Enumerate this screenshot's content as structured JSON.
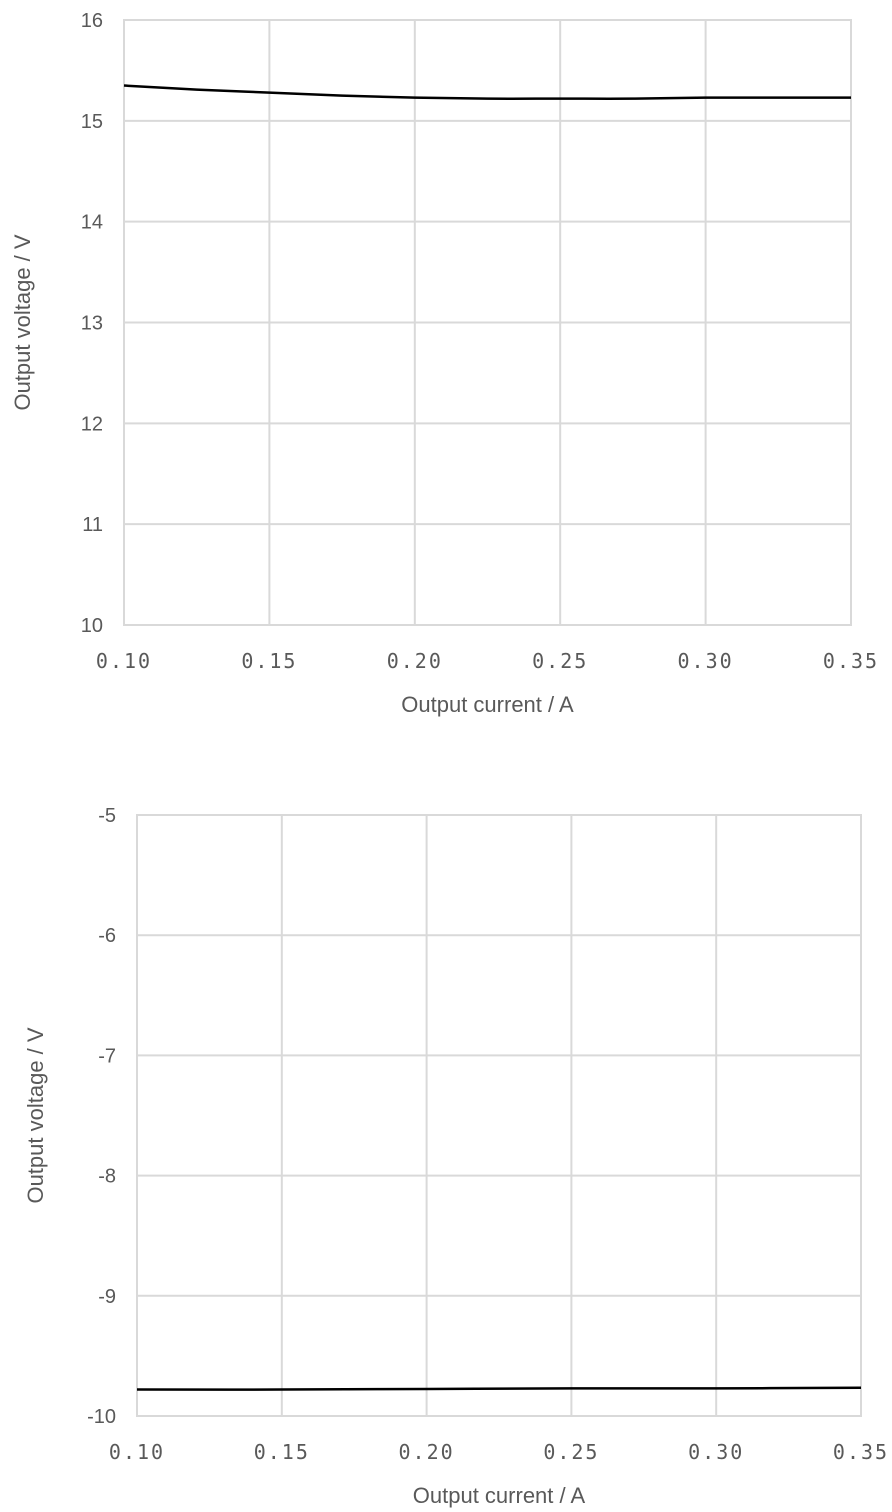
{
  "chart_data": [
    {
      "type": "line",
      "xlabel": "Output current / A",
      "ylabel": "Output voltage / V",
      "xlim": [
        0.1,
        0.35
      ],
      "ylim": [
        10,
        16
      ],
      "x_ticks": [
        "0.10",
        "0.15",
        "0.20",
        "0.25",
        "0.30",
        "0.35"
      ],
      "y_ticks": [
        "10",
        "11",
        "12",
        "13",
        "14",
        "15",
        "16"
      ],
      "grid": true,
      "series": [
        {
          "color": "#000000",
          "x": [
            0.1,
            0.125,
            0.15,
            0.175,
            0.2,
            0.225,
            0.25,
            0.275,
            0.3,
            0.325,
            0.35
          ],
          "y": [
            15.35,
            15.31,
            15.28,
            15.25,
            15.23,
            15.22,
            15.22,
            15.22,
            15.23,
            15.23,
            15.23
          ]
        }
      ]
    },
    {
      "type": "line",
      "xlabel": "Output current / A",
      "ylabel": "Output voltage / V",
      "xlim": [
        0.1,
        0.35
      ],
      "ylim": [
        -10,
        -5
      ],
      "x_ticks": [
        "0.10",
        "0.15",
        "0.20",
        "0.25",
        "0.30",
        "0.35"
      ],
      "y_ticks": [
        "-10",
        "-9",
        "-8",
        "-7",
        "-6",
        "-5"
      ],
      "grid": true,
      "series": [
        {
          "color": "#000000",
          "x": [
            0.1,
            0.15,
            0.2,
            0.25,
            0.3,
            0.35
          ],
          "y": [
            -9.78,
            -9.78,
            -9.775,
            -9.77,
            -9.77,
            -9.765
          ]
        }
      ]
    }
  ]
}
